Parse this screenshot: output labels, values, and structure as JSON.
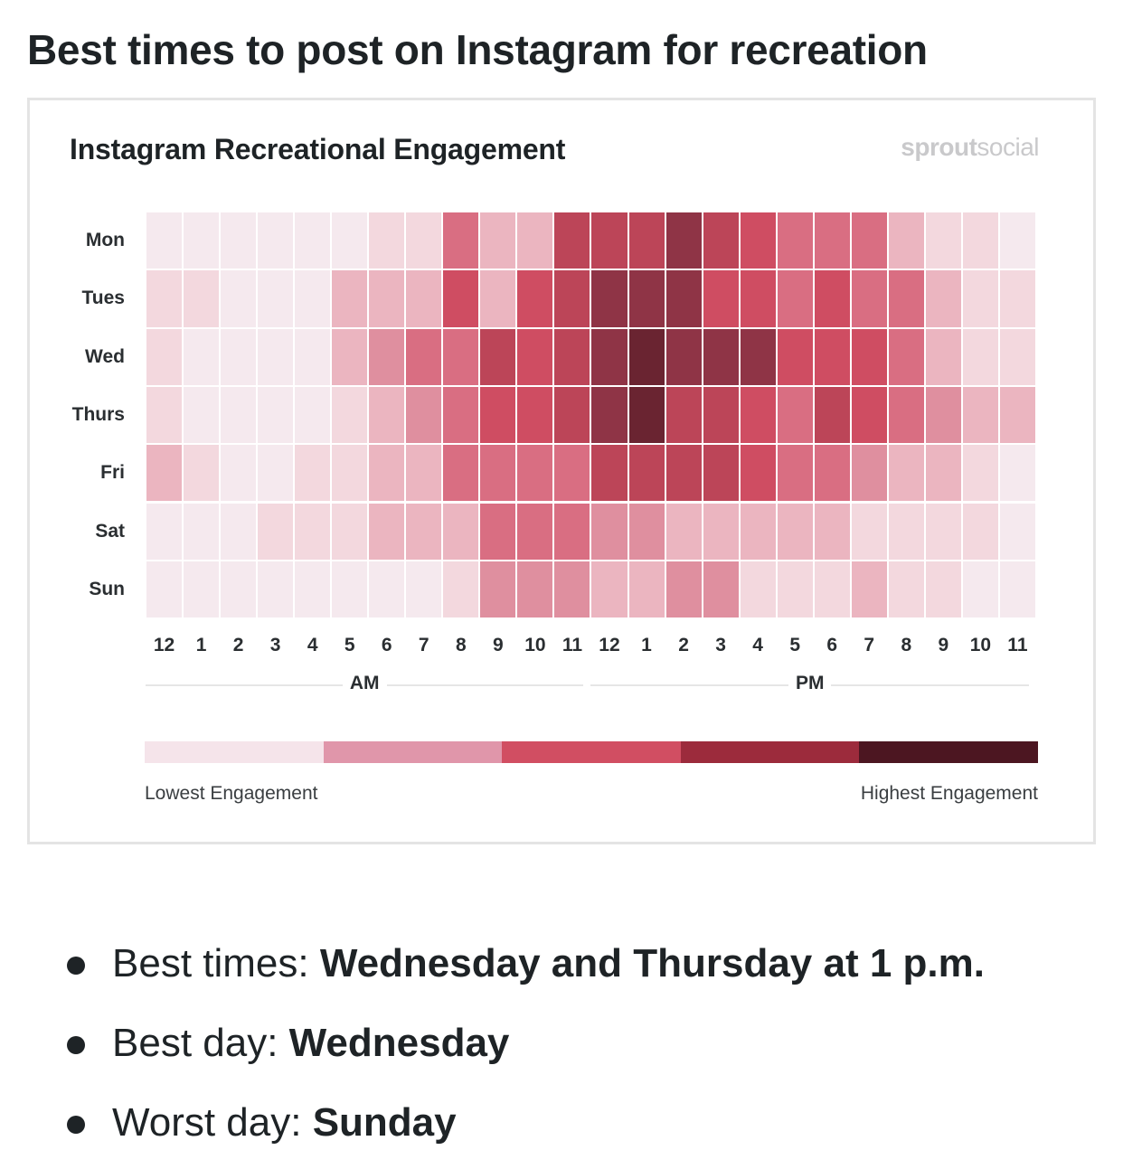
{
  "page": {
    "title": "Best times to post on Instagram for recreation"
  },
  "card": {
    "title": "Instagram Recreational Engagement",
    "logo_bold": "sprout",
    "logo_light": "social"
  },
  "chart_data": {
    "type": "heatmap",
    "title": "Instagram Recreational Engagement",
    "rows": [
      "Mon",
      "Tues",
      "Wed",
      "Thurs",
      "Fri",
      "Sat",
      "Sun"
    ],
    "columns": [
      "12",
      "1",
      "2",
      "3",
      "4",
      "5",
      "6",
      "7",
      "8",
      "9",
      "10",
      "11",
      "12",
      "1",
      "2",
      "3",
      "4",
      "5",
      "6",
      "7",
      "8",
      "9",
      "10",
      "11"
    ],
    "periods": [
      {
        "label": "AM",
        "start": 0,
        "end": 11
      },
      {
        "label": "PM",
        "start": 12,
        "end": 23
      }
    ],
    "value_scale": [
      0,
      8
    ],
    "values": [
      [
        0,
        0,
        0,
        0,
        0,
        0,
        1,
        1,
        4,
        2,
        2,
        6,
        6,
        6,
        7,
        6,
        5,
        4,
        4,
        4,
        2,
        1,
        1,
        0
      ],
      [
        1,
        1,
        0,
        0,
        0,
        2,
        2,
        2,
        5,
        2,
        5,
        6,
        7,
        7,
        7,
        5,
        5,
        4,
        5,
        4,
        4,
        2,
        1,
        1
      ],
      [
        1,
        0,
        0,
        0,
        0,
        2,
        3,
        4,
        4,
        6,
        5,
        6,
        7,
        8,
        7,
        7,
        7,
        5,
        5,
        5,
        4,
        2,
        1,
        1
      ],
      [
        1,
        0,
        0,
        0,
        0,
        1,
        2,
        3,
        4,
        5,
        5,
        6,
        7,
        8,
        6,
        6,
        5,
        4,
        6,
        5,
        4,
        3,
        2,
        2
      ],
      [
        2,
        1,
        0,
        0,
        1,
        1,
        2,
        2,
        4,
        4,
        4,
        4,
        6,
        6,
        6,
        6,
        5,
        4,
        4,
        3,
        2,
        2,
        1,
        0
      ],
      [
        0,
        0,
        0,
        1,
        1,
        1,
        2,
        2,
        2,
        4,
        4,
        4,
        3,
        3,
        2,
        2,
        2,
        2,
        2,
        1,
        1,
        1,
        1,
        0
      ],
      [
        0,
        0,
        0,
        0,
        0,
        0,
        0,
        0,
        1,
        3,
        3,
        3,
        2,
        2,
        3,
        3,
        1,
        1,
        1,
        2,
        1,
        1,
        0,
        0
      ]
    ],
    "level_colors": [
      "#f5e9ee",
      "#f3d8de",
      "#ebb5c0",
      "#df8f9f",
      "#d96e82",
      "#cf4d62",
      "#bc4558",
      "#8f3446",
      "#6a2431"
    ],
    "legend": {
      "colors": [
        "#f5e4ea",
        "#e096aa",
        "#d14e62",
        "#9c2b3c",
        "#4c1621"
      ],
      "low_label": "Lowest Engagement",
      "high_label": "Highest Engagement"
    }
  },
  "bullets": [
    {
      "label": "Best times: ",
      "value": "Wednesday and Thursday at 1 p.m."
    },
    {
      "label": "Best day: ",
      "value": "Wednesday"
    },
    {
      "label": "Worst day: ",
      "value": "Sunday"
    }
  ]
}
